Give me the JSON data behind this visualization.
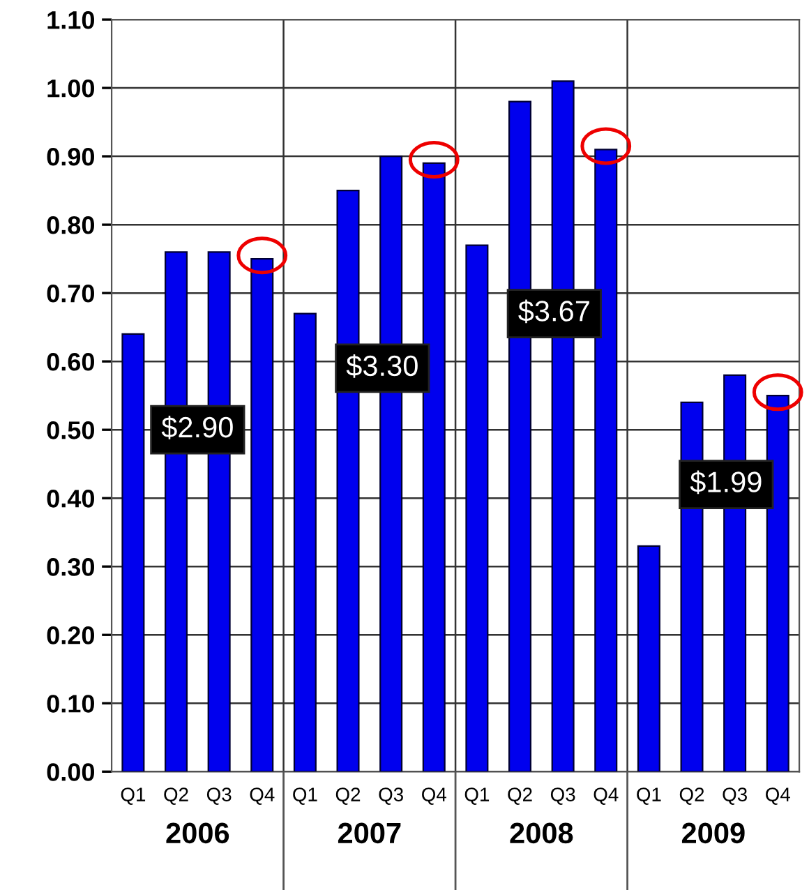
{
  "chart_data": {
    "type": "bar",
    "categories": [
      "Q1",
      "Q2",
      "Q3",
      "Q4",
      "Q1",
      "Q2",
      "Q3",
      "Q4",
      "Q1",
      "Q2",
      "Q3",
      "Q4",
      "Q1",
      "Q2",
      "Q3",
      "Q4"
    ],
    "values": [
      0.64,
      0.76,
      0.76,
      0.75,
      0.67,
      0.85,
      0.9,
      0.89,
      0.77,
      0.98,
      1.01,
      0.91,
      0.33,
      0.54,
      0.58,
      0.55
    ],
    "color": "#0000ee",
    "ylim": [
      0,
      1.1
    ],
    "yticks": [
      {
        "value": 0,
        "label": "0.00"
      },
      {
        "value": 0.1,
        "label": "0.10"
      },
      {
        "value": 0.2,
        "label": "0.20"
      },
      {
        "value": 0.3,
        "label": "0.30"
      },
      {
        "value": 0.4,
        "label": "0.40"
      },
      {
        "value": 0.5,
        "label": "0.50"
      },
      {
        "value": 0.6,
        "label": "0.60"
      },
      {
        "value": 0.7,
        "label": "0.70"
      },
      {
        "value": 0.8,
        "label": "0.80"
      },
      {
        "value": 0.9,
        "label": "0.90"
      },
      {
        "value": 1.0,
        "label": "1.00"
      },
      {
        "value": 1.1,
        "label": "1.10"
      }
    ],
    "grid": true,
    "annotations": [
      "$2.90",
      "$3.30",
      "$3.67",
      "$1.99",
      "2006",
      "2007",
      "2008",
      "2009"
    ]
  }
}
